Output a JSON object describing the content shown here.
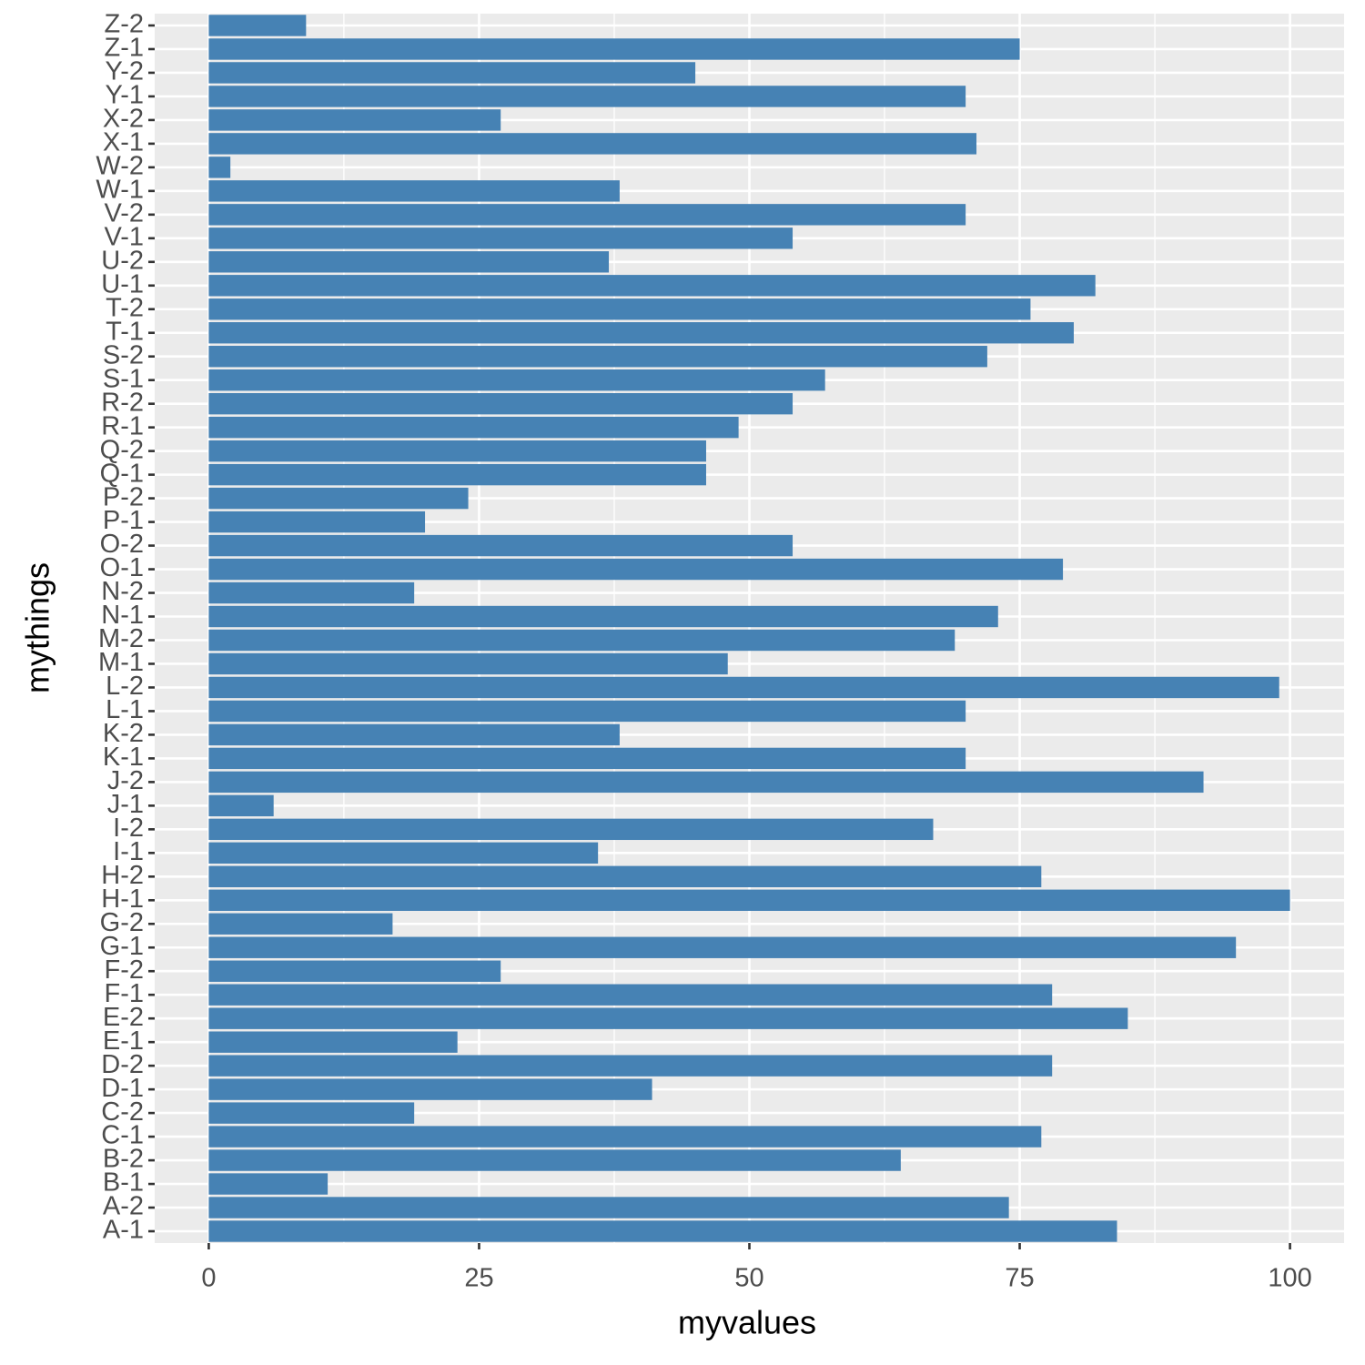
{
  "chart_data": {
    "type": "hbar",
    "x_label": "myvalues",
    "y_label": "mythings",
    "categories": [
      "A-1",
      "A-2",
      "B-1",
      "B-2",
      "C-1",
      "C-2",
      "D-1",
      "D-2",
      "E-1",
      "E-2",
      "F-1",
      "F-2",
      "G-1",
      "G-2",
      "H-1",
      "H-2",
      "I-1",
      "I-2",
      "J-1",
      "J-2",
      "K-1",
      "K-2",
      "L-1",
      "L-2",
      "M-1",
      "M-2",
      "N-1",
      "N-2",
      "O-1",
      "O-2",
      "P-1",
      "P-2",
      "Q-1",
      "Q-2",
      "R-1",
      "R-2",
      "S-1",
      "S-2",
      "T-1",
      "T-2",
      "U-1",
      "U-2",
      "V-1",
      "V-2",
      "W-1",
      "W-2",
      "X-1",
      "X-2",
      "Y-1",
      "Y-2",
      "Z-1",
      "Z-2"
    ],
    "values": [
      84,
      74,
      11,
      64,
      77,
      19,
      41,
      78,
      23,
      85,
      78,
      27,
      95,
      17,
      100,
      77,
      36,
      67,
      6,
      92,
      70,
      38,
      70,
      99,
      48,
      69,
      73,
      19,
      79,
      54,
      20,
      24,
      46,
      46,
      49,
      54,
      57,
      72,
      80,
      76,
      82,
      37,
      54,
      70,
      38,
      2,
      71,
      27,
      70,
      45,
      75,
      9
    ],
    "color": "#4682b4",
    "xlim": [
      -5,
      105
    ],
    "xticks": [
      0,
      25,
      50,
      75,
      100
    ],
    "grid": true,
    "minor_grid": true
  }
}
